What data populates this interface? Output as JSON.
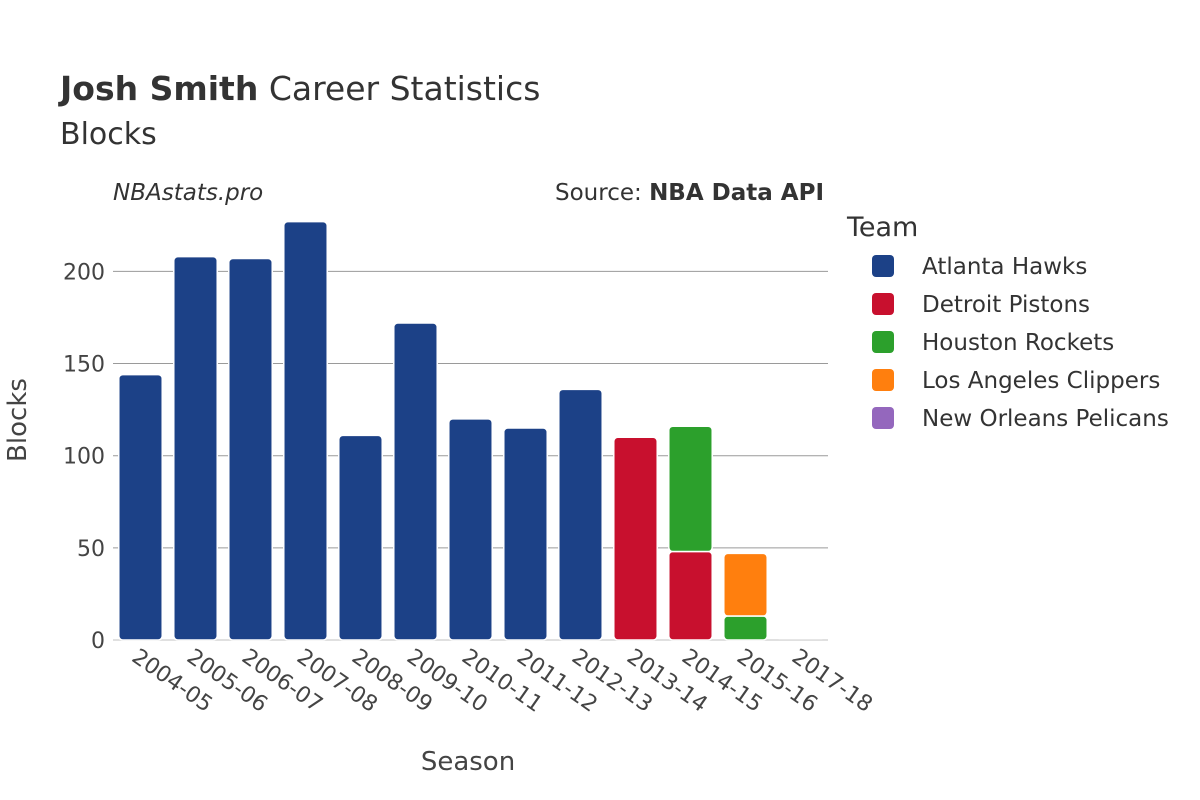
{
  "header": {
    "title_bold": "Josh Smith",
    "title_rest": "Career Statistics",
    "subtitle": "Blocks",
    "site": "NBAstats.pro",
    "source_prefix": "Source: ",
    "source_name": "NBA Data API"
  },
  "legend": {
    "title": "Team"
  },
  "chart_data": {
    "type": "bar",
    "stacked": true,
    "xlabel": "Season",
    "ylabel": "Blocks",
    "ylim": [
      0,
      230
    ],
    "yticks": [
      0,
      50,
      100,
      150,
      200
    ],
    "grid": true,
    "legend_position": "right",
    "categories": [
      "2004-05",
      "2005-06",
      "2006-07",
      "2007-08",
      "2008-09",
      "2009-10",
      "2010-11",
      "2011-12",
      "2012-13",
      "2013-14",
      "2014-15",
      "2015-16",
      "2017-18"
    ],
    "series": [
      {
        "name": "Atlanta Hawks",
        "color": "#1c4187",
        "values": [
          144,
          208,
          207,
          227,
          111,
          172,
          120,
          115,
          136,
          0,
          0,
          0,
          0
        ]
      },
      {
        "name": "Detroit Pistons",
        "color": "#c8102e",
        "values": [
          0,
          0,
          0,
          0,
          0,
          0,
          0,
          0,
          0,
          110,
          48,
          0,
          0
        ]
      },
      {
        "name": "Houston Rockets",
        "color": "#2ca02c",
        "values": [
          0,
          0,
          0,
          0,
          0,
          0,
          0,
          0,
          0,
          0,
          68,
          13,
          0
        ]
      },
      {
        "name": "Los Angeles Clippers",
        "color": "#ff7f0e",
        "values": [
          0,
          0,
          0,
          0,
          0,
          0,
          0,
          0,
          0,
          0,
          0,
          34,
          0
        ]
      },
      {
        "name": "New Orleans Pelicans",
        "color": "#9467bd",
        "values": [
          0,
          0,
          0,
          0,
          0,
          0,
          0,
          0,
          0,
          0,
          0,
          0,
          0
        ]
      }
    ]
  }
}
